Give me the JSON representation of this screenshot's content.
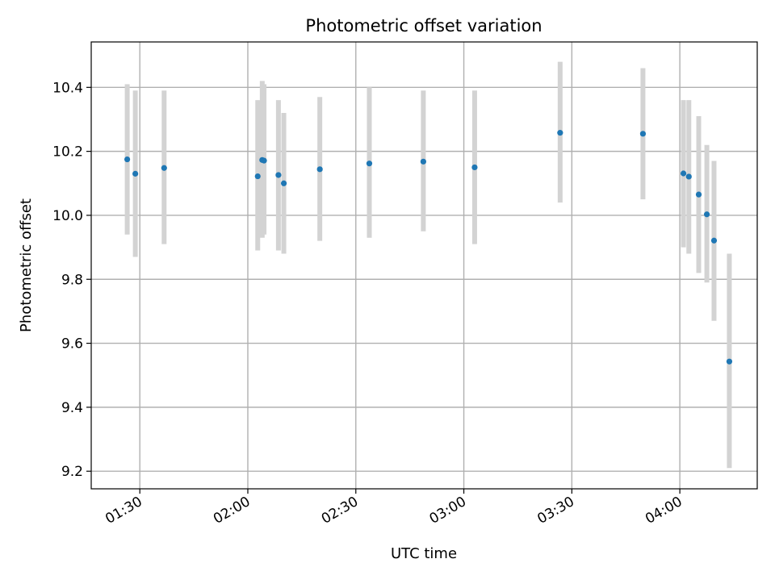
{
  "chart_data": {
    "type": "scatter",
    "title": "Photometric offset variation",
    "xlabel": "UTC time",
    "ylabel": "Photometric offset",
    "grid": true,
    "x_ticks": [
      "01:30",
      "02:00",
      "02:30",
      "03:00",
      "03:30",
      "04:00"
    ],
    "y_ticks": [
      "9.2",
      "9.4",
      "9.6",
      "9.8",
      "10.0",
      "10.2",
      "10.4"
    ],
    "xlim": [
      "01:16:30",
      "04:21:30"
    ],
    "ylim": [
      9.145,
      10.542
    ],
    "colors": {
      "point": "#1f77b4",
      "errorbar": "#d3d3d3",
      "grid": "#b0b0b0",
      "axes": "#000000"
    },
    "series": [
      {
        "points": [
          {
            "x": "01:26:30",
            "y": 10.175,
            "ylow": 9.94,
            "yhigh": 10.41
          },
          {
            "x": "01:28:45",
            "y": 10.13,
            "ylow": 9.87,
            "yhigh": 10.39
          },
          {
            "x": "01:36:45",
            "y": 10.148,
            "ylow": 9.91,
            "yhigh": 10.39
          },
          {
            "x": "02:02:45",
            "y": 10.122,
            "ylow": 9.89,
            "yhigh": 10.36
          },
          {
            "x": "02:04:00",
            "y": 10.173,
            "ylow": 9.93,
            "yhigh": 10.42
          },
          {
            "x": "02:04:30",
            "y": 10.171,
            "ylow": 9.94,
            "yhigh": 10.41
          },
          {
            "x": "02:08:30",
            "y": 10.126,
            "ylow": 9.89,
            "yhigh": 10.36
          },
          {
            "x": "02:10:00",
            "y": 10.1,
            "ylow": 9.88,
            "yhigh": 10.32
          },
          {
            "x": "02:20:00",
            "y": 10.144,
            "ylow": 9.92,
            "yhigh": 10.37
          },
          {
            "x": "02:33:45",
            "y": 10.162,
            "ylow": 9.93,
            "yhigh": 10.4
          },
          {
            "x": "02:48:45",
            "y": 10.168,
            "ylow": 9.95,
            "yhigh": 10.39
          },
          {
            "x": "03:03:00",
            "y": 10.15,
            "ylow": 9.91,
            "yhigh": 10.39
          },
          {
            "x": "03:26:45",
            "y": 10.258,
            "ylow": 10.04,
            "yhigh": 10.48
          },
          {
            "x": "03:49:45",
            "y": 10.255,
            "ylow": 10.05,
            "yhigh": 10.46
          },
          {
            "x": "04:01:00",
            "y": 10.131,
            "ylow": 9.9,
            "yhigh": 10.36
          },
          {
            "x": "04:02:30",
            "y": 10.121,
            "ylow": 9.88,
            "yhigh": 10.36
          },
          {
            "x": "04:05:15",
            "y": 10.065,
            "ylow": 9.82,
            "yhigh": 10.31
          },
          {
            "x": "04:07:30",
            "y": 10.003,
            "ylow": 9.79,
            "yhigh": 10.22
          },
          {
            "x": "04:09:30",
            "y": 9.921,
            "ylow": 9.67,
            "yhigh": 10.17
          },
          {
            "x": "04:13:45",
            "y": 9.543,
            "ylow": 9.21,
            "yhigh": 9.88
          }
        ]
      }
    ]
  }
}
